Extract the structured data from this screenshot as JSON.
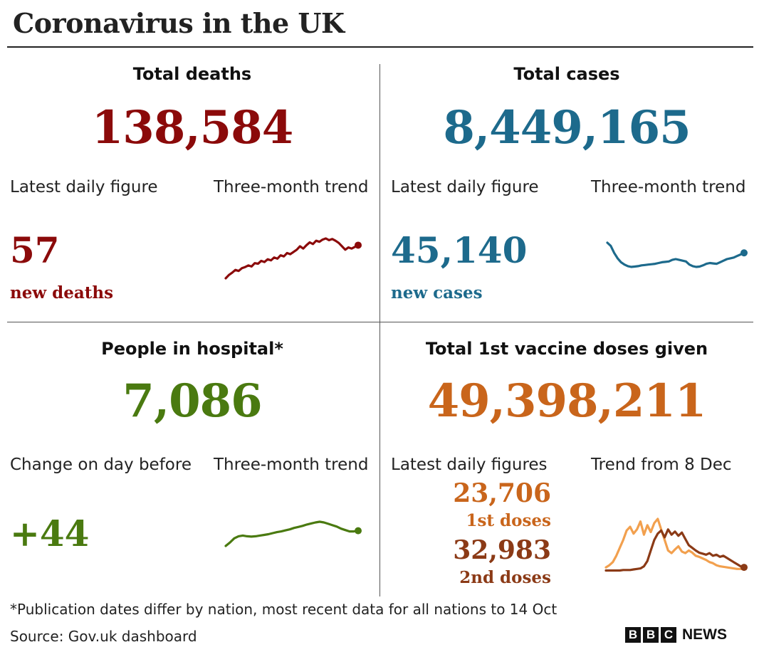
{
  "title": "Coronavirus in the UK",
  "colors": {
    "deaths": "#8b0a0a",
    "cases": "#1d6a8c",
    "hospital": "#4a7a10",
    "vaccine": "#c9651b",
    "first_doses": "#c9651b",
    "second_doses": "#8b3a16",
    "first_doses_line": "#f2a04e",
    "second_doses_line": "#8b3a16"
  },
  "deaths": {
    "heading": "Total deaths",
    "total": "138,584",
    "latest_label": "Latest daily figure",
    "trend_label": "Three-month trend",
    "latest_value": "57",
    "latest_caption": "new deaths",
    "trend": [
      21,
      27,
      31,
      36,
      34,
      39,
      41,
      44,
      42,
      48,
      47,
      52,
      50,
      55,
      53,
      58,
      56,
      62,
      60,
      66,
      64,
      68,
      72,
      78,
      74,
      80,
      85,
      82,
      88,
      86,
      90,
      92,
      89,
      91,
      88,
      84,
      78,
      72,
      76,
      74,
      77,
      80
    ]
  },
  "cases": {
    "heading": "Total cases",
    "total": "8,449,165",
    "latest_label": "Latest daily figure",
    "trend_label": "Three-month trend",
    "latest_value": "45,140",
    "latest_caption": "new cases",
    "trend": [
      88,
      80,
      62,
      48,
      38,
      32,
      28,
      26,
      27,
      28,
      30,
      31,
      32,
      33,
      34,
      36,
      38,
      39,
      40,
      44,
      46,
      44,
      42,
      40,
      32,
      28,
      26,
      27,
      30,
      34,
      36,
      35,
      34,
      38,
      42,
      46,
      48,
      50,
      54,
      58,
      62
    ]
  },
  "hospital": {
    "heading": "People in hospital*",
    "total": "7,086",
    "latest_label": "Change on day before",
    "trend_label": "Three-month trend",
    "latest_value": "+44",
    "trend": [
      10,
      20,
      32,
      38,
      40,
      38,
      37,
      38,
      40,
      42,
      44,
      47,
      50,
      52,
      55,
      58,
      62,
      65,
      68,
      72,
      75,
      78,
      80,
      78,
      74,
      70,
      66,
      60,
      56,
      52,
      52,
      54
    ]
  },
  "vaccine": {
    "heading": "Total 1st vaccine doses given",
    "total": "49,398,211",
    "latest_label": "Latest daily figures",
    "trend_label": "Trend from 8 Dec",
    "first_value": "23,706",
    "first_caption": "1st doses",
    "second_value": "32,983",
    "second_caption": "2nd doses",
    "first_trend": [
      8,
      12,
      18,
      30,
      45,
      60,
      78,
      85,
      72,
      80,
      95,
      70,
      88,
      75,
      92,
      100,
      80,
      60,
      40,
      35,
      42,
      48,
      38,
      35,
      40,
      36,
      30,
      28,
      25,
      22,
      18,
      16,
      12,
      10,
      9,
      8,
      7,
      6,
      5,
      5,
      6
    ],
    "second_trend": [
      2,
      2,
      2,
      2,
      2,
      3,
      3,
      3,
      4,
      5,
      6,
      10,
      20,
      40,
      60,
      72,
      78,
      65,
      80,
      70,
      76,
      68,
      74,
      62,
      50,
      45,
      40,
      36,
      34,
      32,
      35,
      30,
      32,
      28,
      30,
      26,
      22,
      18,
      14,
      10,
      8
    ]
  },
  "footnote": "*Publication dates differ by nation, most recent data for all nations to 14 Oct",
  "source": "Source: Gov.uk dashboard",
  "logo": {
    "letters": [
      "B",
      "B",
      "C"
    ],
    "news": "NEWS"
  }
}
